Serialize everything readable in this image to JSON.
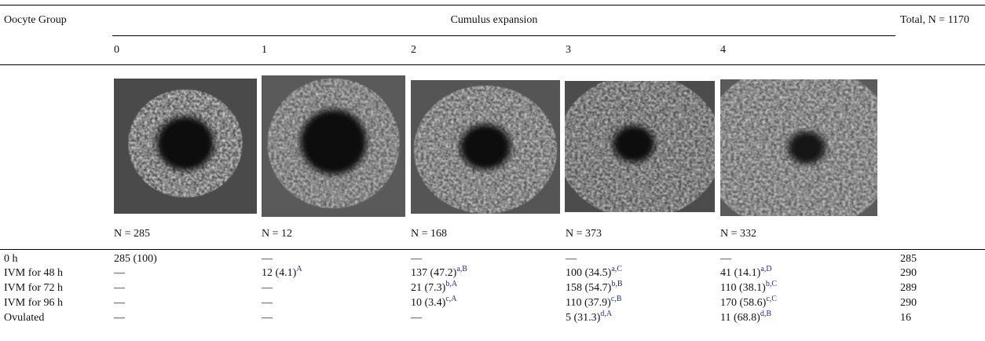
{
  "header": {
    "group_label": "Oocyte Group",
    "expansion_label": "Cumulus expansion",
    "total_label": "Total, N = 1170"
  },
  "columns": [
    "0",
    "1",
    "2",
    "3",
    "4"
  ],
  "column_counts": [
    "N = 285",
    "N = 12",
    "N = 168",
    "N = 373",
    "N = 332"
  ],
  "rows": [
    {
      "label": "0 h",
      "cells": [
        "285 (100)",
        "—",
        "—",
        "—",
        "—"
      ],
      "total": "285"
    },
    {
      "label": "IVM for 48 h",
      "cells": [
        "—",
        {
          "text": "12 (4.1)",
          "sup": "A"
        },
        {
          "text": "137 (47.2)",
          "sup": "a,B"
        },
        {
          "text": "100 (34.5)",
          "sup": "a,C"
        },
        {
          "text": "41 (14.1)",
          "sup": "a,D"
        }
      ],
      "total": "290"
    },
    {
      "label": "IVM for 72 h",
      "cells": [
        "—",
        "—",
        {
          "text": "21 (7.3)",
          "sup": "b,A"
        },
        {
          "text": "158 (54.7)",
          "sup": "b,B"
        },
        {
          "text": "110 (38.1)",
          "sup": "b,C"
        }
      ],
      "total": "289"
    },
    {
      "label": "IVM for 96 h",
      "cells": [
        "—",
        "—",
        {
          "text": "10 (3.4)",
          "sup": "c,A"
        },
        {
          "text": "110 (37.9)",
          "sup": "c,B"
        },
        {
          "text": "170 (58.6)",
          "sup": "c,C"
        }
      ],
      "total": "290"
    },
    {
      "label": "Ovulated",
      "cells": [
        "—",
        "—",
        "—",
        {
          "text": "5 (31.3)",
          "sup": "d,A"
        },
        {
          "text": "11 (68.8)",
          "sup": "d,B"
        }
      ],
      "total": "16"
    }
  ]
}
